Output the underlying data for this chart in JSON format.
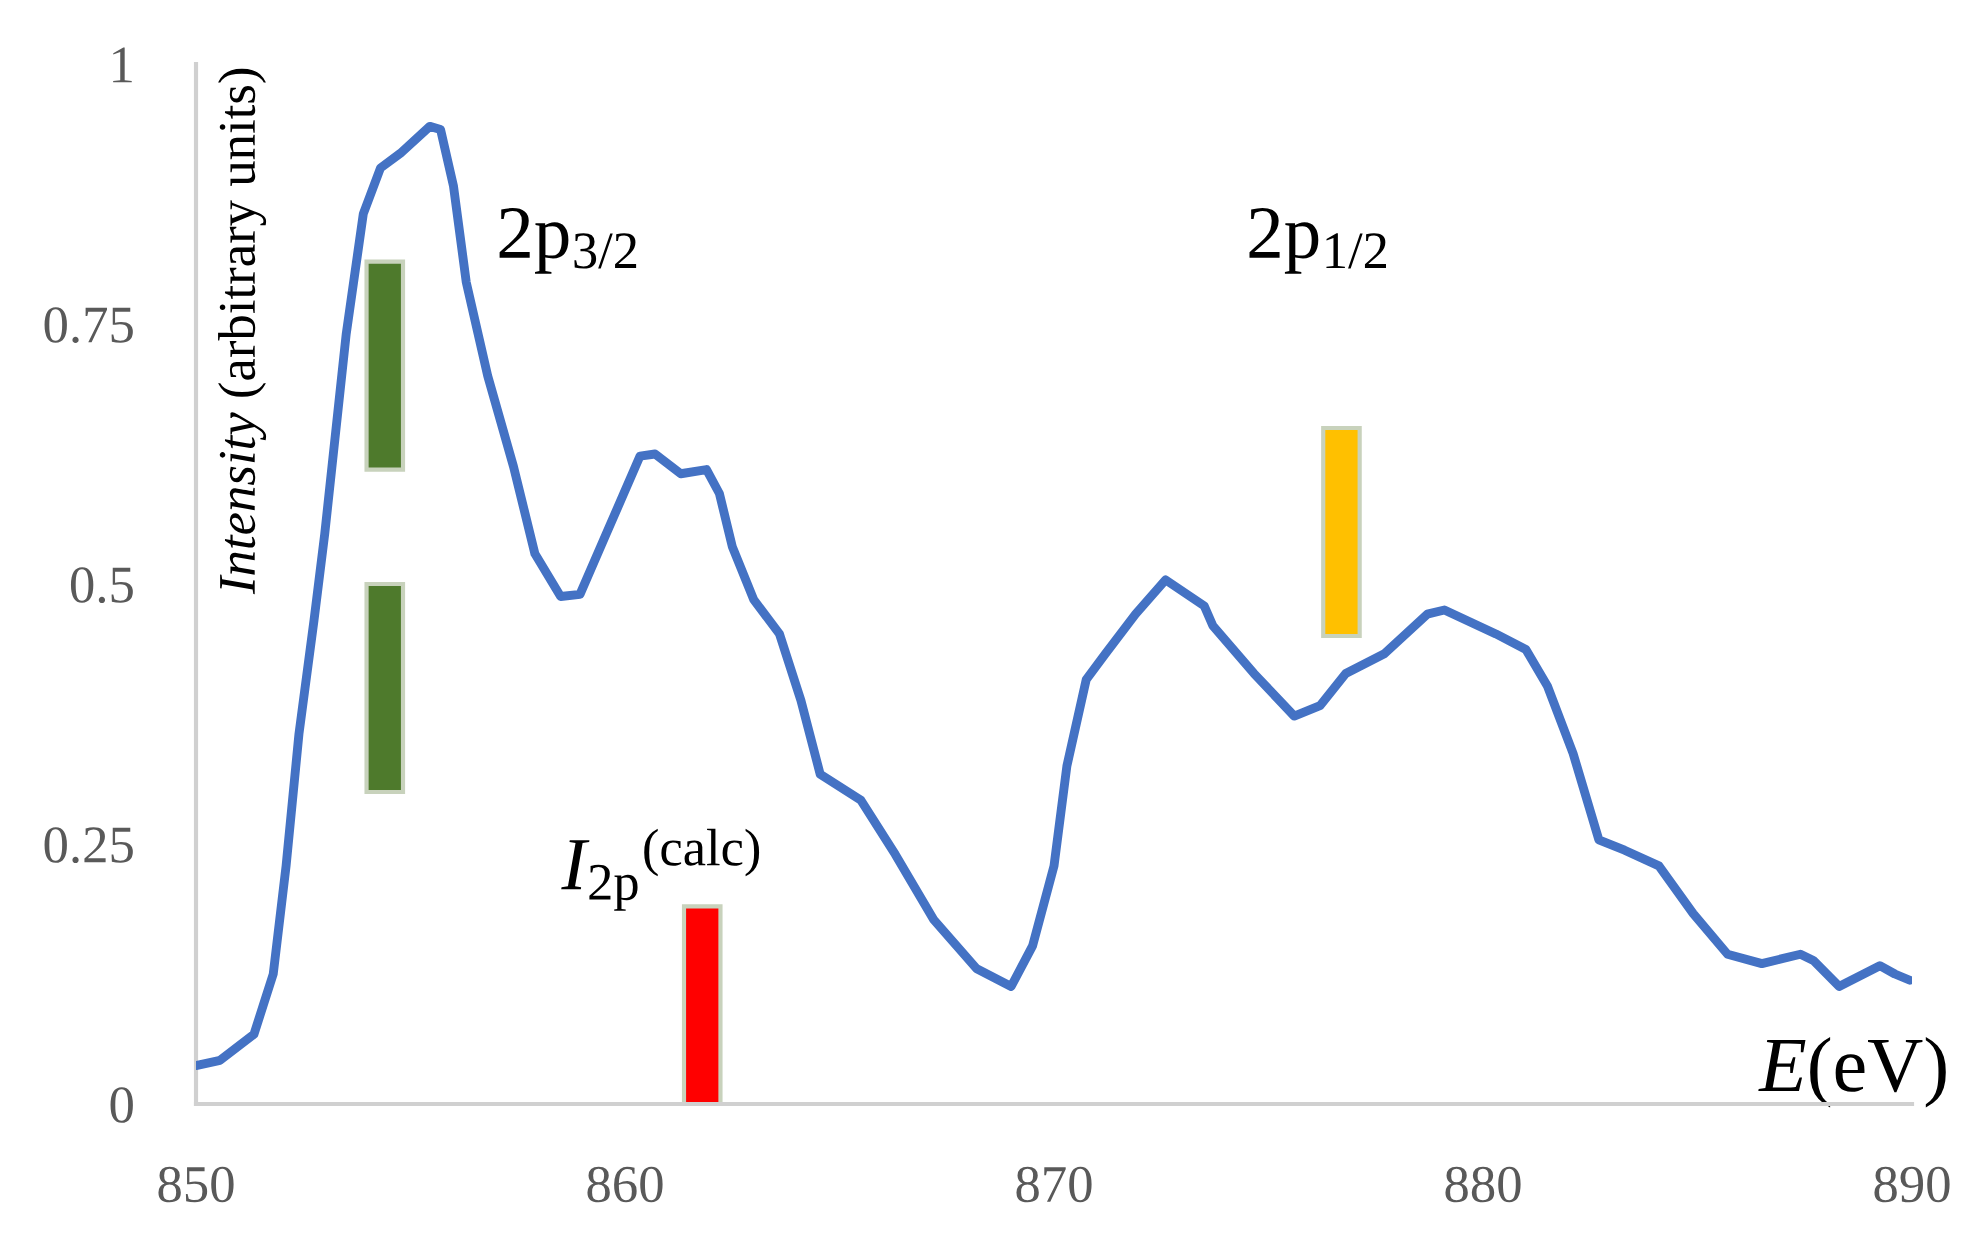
{
  "chart_data": {
    "type": "line",
    "xlabel": "E(eV)",
    "ylabel": "Intensity (arbitrary units)",
    "annotations": [
      "2p$_{3/2}$",
      "2p$_{1/2}$",
      "I$_{2p}$$^{(calc)}$"
    ],
    "xlim": [
      850,
      890
    ],
    "ylim": [
      0,
      1
    ],
    "xticks": [
      850,
      860,
      870,
      880,
      890
    ],
    "yticks": [
      0,
      0.25,
      0.5,
      0.75,
      1
    ],
    "grid": false,
    "series": [
      {
        "color": "#4472c4",
        "x": [
          850,
          850.56,
          851.35,
          851.8,
          852.1,
          852.4,
          852.75,
          853.0,
          853.5,
          853.9,
          854.3,
          854.76,
          855.45,
          855.7,
          856.0,
          856.3,
          856.8,
          857.4,
          857.9,
          858.5,
          858.95,
          859.56,
          860.35,
          860.7,
          861.3,
          861.9,
          862.2,
          862.5,
          863.0,
          863.6,
          864.1,
          864.55,
          865.5,
          866.3,
          867.2,
          868.2,
          869.0,
          869.5,
          870.0,
          870.3,
          870.75,
          871.2,
          871.9,
          872.6,
          873.5,
          873.7,
          874.66,
          875.6,
          876.2,
          876.8,
          877.7,
          878.7,
          879.1,
          880.3,
          881.0,
          881.5,
          882.1,
          882.7,
          883.3,
          884.1,
          884.9,
          885.7,
          886.5,
          887.4,
          887.7,
          888.3,
          889.25,
          889.6,
          889.95
        ],
        "values": [
          0.037,
          0.042,
          0.067,
          0.125,
          0.229,
          0.356,
          0.465,
          0.548,
          0.74,
          0.856,
          0.9,
          0.914,
          0.94,
          0.937,
          0.883,
          0.79,
          0.7,
          0.613,
          0.529,
          0.488,
          0.49,
          0.548,
          0.623,
          0.625,
          0.606,
          0.61,
          0.587,
          0.536,
          0.485,
          0.452,
          0.388,
          0.317,
          0.292,
          0.24,
          0.177,
          0.13,
          0.113,
          0.152,
          0.229,
          0.325,
          0.408,
          0.433,
          0.471,
          0.504,
          0.479,
          0.46,
          0.414,
          0.373,
          0.383,
          0.414,
          0.433,
          0.471,
          0.475,
          0.452,
          0.437,
          0.402,
          0.337,
          0.254,
          0.244,
          0.229,
          0.183,
          0.144,
          0.135,
          0.144,
          0.138,
          0.113,
          0.133,
          0.125,
          0.119
        ]
      },
      {
        "type": "bar",
        "x": [
          854.4,
          861.8,
          876.7
        ],
        "base": [
          0.3,
          0,
          0.45
        ],
        "values": [
          0.2,
          0.19,
          0.2
        ],
        "colors": [
          "#4e7a2c",
          "#ff0000",
          "#ffc000"
        ]
      },
      {
        "type": "bar",
        "x": [
          854.4
        ],
        "base": [
          0.61
        ],
        "values": [
          0.2
        ],
        "color": "#4e7a2c"
      }
    ]
  }
}
